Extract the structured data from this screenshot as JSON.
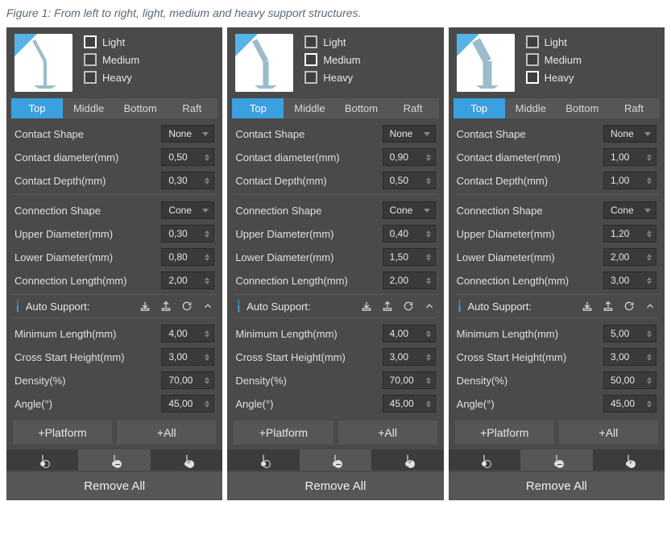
{
  "caption": "Figure 1: From left to right, light, medium  and heavy support structures.",
  "colors": {
    "panel_bg": "#4a4a4a",
    "text": "#e8e8e8",
    "accent": "#3aa0e0",
    "button_bg": "#565656",
    "input_bg": "#3a3a3a",
    "thumb_bg": "#ffffff",
    "thumb_line": "#9abccb",
    "thumb_sky": "#57b3e6"
  },
  "checks": [
    "Light",
    "Medium",
    "Heavy"
  ],
  "tabs": [
    "Top",
    "Middle",
    "Bottom",
    "Raft"
  ],
  "active_tab": "Top",
  "section1_labels": [
    "Contact Shape",
    "Contact diameter(mm)",
    "Contact Depth(mm)"
  ],
  "section2_labels": [
    "Connection Shape",
    "Upper Diameter(mm)",
    "Lower Diameter(mm)",
    "Connection Length(mm)"
  ],
  "auto_label": "Auto Support:",
  "section3_labels": [
    "Minimum Length(mm)",
    "Cross Start Height(mm)",
    "Density(%)",
    "Angle(°)"
  ],
  "btn_platform": "+Platform",
  "btn_all": "+All",
  "btn_remove": "Remove All",
  "thumbs": [
    {
      "line_width": 4
    },
    {
      "line_width": 7
    },
    {
      "line_width": 11
    }
  ],
  "panels": [
    {
      "selected_check": 0,
      "contact_shape": "None",
      "contact_diameter": "0,50",
      "contact_depth": "0,30",
      "connection_shape": "Cone",
      "upper_diameter": "0,30",
      "lower_diameter": "0,80",
      "connection_length": "2,00",
      "min_length": "4,00",
      "cross_start": "3,00",
      "density": "70,00",
      "angle": "45,00"
    },
    {
      "selected_check": 1,
      "contact_shape": "None",
      "contact_diameter": "0,90",
      "contact_depth": "0,50",
      "connection_shape": "Cone",
      "upper_diameter": "0,40",
      "lower_diameter": "1,50",
      "connection_length": "2,00",
      "min_length": "4,00",
      "cross_start": "3,00",
      "density": "70,00",
      "angle": "45,00"
    },
    {
      "selected_check": 2,
      "contact_shape": "None",
      "contact_diameter": "1,00",
      "contact_depth": "1,00",
      "connection_shape": "Cone",
      "upper_diameter": "1,20",
      "lower_diameter": "2,00",
      "connection_length": "3,00",
      "min_length": "5,00",
      "cross_start": "3,00",
      "density": "50,00",
      "angle": "45,00"
    }
  ]
}
